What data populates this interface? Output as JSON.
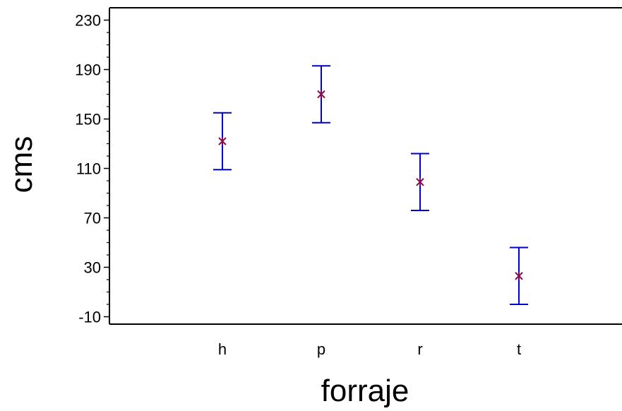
{
  "chart_data": {
    "type": "scatter",
    "title": "",
    "xlabel": "forraje",
    "ylabel": "cms",
    "categories": [
      "h",
      "p",
      "r",
      "t"
    ],
    "means": [
      132,
      170,
      99,
      23
    ],
    "lower": [
      109,
      147,
      76,
      0
    ],
    "upper": [
      155,
      193,
      122,
      46
    ],
    "ylim": [
      -16,
      240
    ],
    "yticks": [
      -10,
      30,
      70,
      110,
      150,
      190,
      230
    ],
    "grid": false,
    "colors": {
      "interval": "#0000cc",
      "mean_marker": "#8b0a50",
      "axis": "#000000"
    }
  }
}
